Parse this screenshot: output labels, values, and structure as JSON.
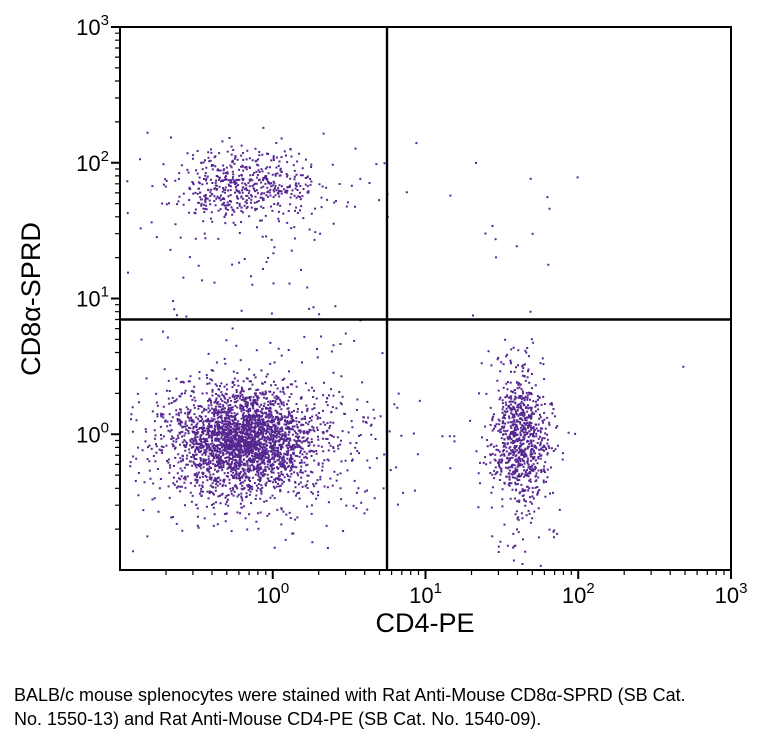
{
  "figure": {
    "background": "#ffffff",
    "axis_color": "#000000"
  },
  "chart_data": {
    "type": "scatter",
    "subtype": "flow-cytometry-dot-plot",
    "title": "",
    "xlabel": "CD4-PE",
    "ylabel": "CD8α-SPRD",
    "x_scale": "log",
    "y_scale": "log",
    "x_range": [
      0.1,
      1000
    ],
    "y_range": [
      0.1,
      1000
    ],
    "x_tick_exponents": [
      0,
      1,
      2,
      3
    ],
    "y_tick_exponents": [
      0,
      1,
      2,
      3
    ],
    "grid": false,
    "legend": false,
    "quadrant_gates": {
      "x": 5.6,
      "y": 7.0
    },
    "dot_color": "#55268f",
    "seed": 42,
    "populations": [
      {
        "name": "CD8-positive cluster (upper-left quadrant)",
        "count": 430,
        "log_center_x": -0.21,
        "log_center_y": 1.84,
        "log_sd_x": 0.23,
        "log_sd_y": 0.12
      },
      {
        "name": "CD8-positive halo",
        "count": 140,
        "log_center_x": -0.15,
        "log_center_y": 1.82,
        "log_sd_x": 0.4,
        "log_sd_y": 0.2
      },
      {
        "name": "double-negative core (lower-left quadrant)",
        "count": 2100,
        "log_center_x": -0.2,
        "log_center_y": -0.04,
        "log_sd_x": 0.21,
        "log_sd_y": 0.17
      },
      {
        "name": "double-negative halo",
        "count": 950,
        "log_center_x": -0.17,
        "log_center_y": -0.05,
        "log_sd_x": 0.4,
        "log_sd_y": 0.3
      },
      {
        "name": "CD4-positive cluster (lower-right quadrant)",
        "count": 680,
        "log_center_x": 1.62,
        "log_center_y": -0.03,
        "log_sd_x": 0.09,
        "log_sd_y": 0.23
      },
      {
        "name": "CD4-positive halo",
        "count": 200,
        "log_center_x": 1.61,
        "log_center_y": -0.1,
        "log_sd_x": 0.13,
        "log_sd_y": 0.42
      },
      {
        "name": "upper-right sparse events",
        "count": 14,
        "log_center_x": 1.52,
        "log_center_y": 1.62,
        "log_sd_x": 0.3,
        "log_sd_y": 0.26
      },
      {
        "name": "left mid sparse events",
        "count": 50,
        "log_center_x": -0.18,
        "log_center_y": 1.1,
        "log_sd_x": 0.34,
        "log_sd_y": 0.38
      },
      {
        "name": "lower mid sparse events",
        "count": 22,
        "log_center_x": 0.55,
        "log_center_y": 0.0,
        "log_sd_x": 0.45,
        "log_sd_y": 0.3
      }
    ],
    "outlier_points": [
      [
        480,
        3.2
      ]
    ]
  },
  "caption": {
    "text": "BALB/c mouse splenocytes were stained with Rat Anti-Mouse CD8α-SPRD (SB Cat. No. 1550-13) and Rat Anti-Mouse CD4-PE (SB Cat. No. 1540-09)."
  }
}
